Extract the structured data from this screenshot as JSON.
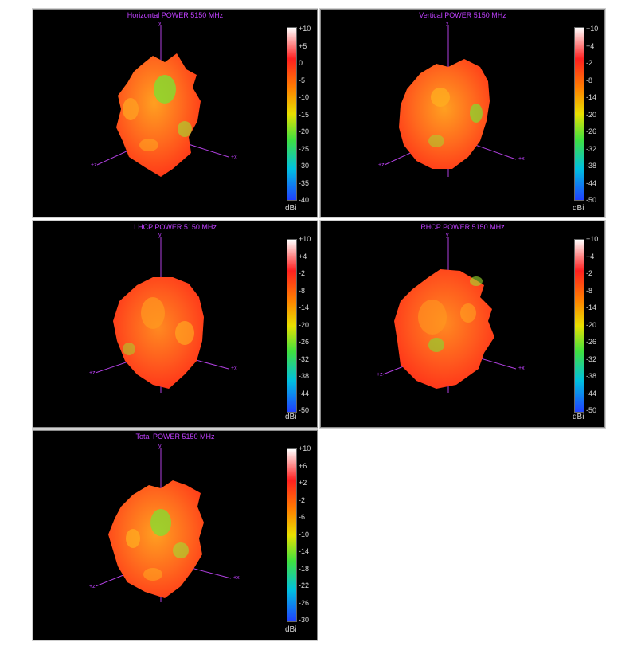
{
  "chart_data": [
    {
      "type": "3d-radiation-pattern",
      "title": "Horizontal POWER 5150  MHz",
      "colorbar": {
        "unit": "dBi",
        "ticks": [
          "+10",
          "+5",
          "0",
          "-5",
          "-10",
          "-15",
          "-20",
          "-25",
          "-30",
          "-35",
          "-40"
        ],
        "range": [
          -40,
          10
        ]
      },
      "axes": {
        "y": "y",
        "z": "+z",
        "x": "+x"
      }
    },
    {
      "type": "3d-radiation-pattern",
      "title": "Vertical POWER 5150  MHz",
      "colorbar": {
        "unit": "dBi",
        "ticks": [
          "+10",
          "+4",
          "-2",
          "-8",
          "-14",
          "-20",
          "-26",
          "-32",
          "-38",
          "-44",
          "-50"
        ],
        "range": [
          -50,
          10
        ]
      },
      "axes": {
        "y": "y",
        "z": "+z",
        "x": "+x"
      }
    },
    {
      "type": "3d-radiation-pattern",
      "title": "LHCP POWER 5150  MHz",
      "colorbar": {
        "unit": "dBi",
        "ticks": [
          "+10",
          "+4",
          "-2",
          "-8",
          "-14",
          "-20",
          "-26",
          "-32",
          "-38",
          "-44",
          "-50"
        ],
        "range": [
          -50,
          10
        ]
      },
      "axes": {
        "y": "y",
        "z": "+z",
        "x": "+x"
      }
    },
    {
      "type": "3d-radiation-pattern",
      "title": "RHCP POWER 5150  MHz",
      "colorbar": {
        "unit": "dBi",
        "ticks": [
          "+10",
          "+4",
          "-2",
          "-8",
          "-14",
          "-20",
          "-26",
          "-32",
          "-38",
          "-44",
          "-50"
        ],
        "range": [
          -50,
          10
        ]
      },
      "axes": {
        "y": "y",
        "z": "+z",
        "x": "+x"
      }
    },
    {
      "type": "3d-radiation-pattern",
      "title": "Total POWER 5150  MHz",
      "colorbar": {
        "unit": "dBi",
        "ticks": [
          "+10",
          "+6",
          "+2",
          "-2",
          "-6",
          "-10",
          "-14",
          "-18",
          "-22",
          "-26",
          "-30"
        ],
        "range": [
          -30,
          10
        ]
      },
      "axes": {
        "y": "y",
        "z": "+z",
        "x": "+x"
      }
    }
  ],
  "colors": {
    "background": "#000000",
    "axis": "#b040e0",
    "title": "#c040ff",
    "colormap": [
      "#ffffff",
      "#ff2020",
      "#ff8000",
      "#e8e000",
      "#40e040",
      "#00c0e0",
      "#2040ff"
    ],
    "blob_main": "#ff5a1e",
    "blob_highlight": "#ffa020",
    "blob_green": "#80e030"
  }
}
